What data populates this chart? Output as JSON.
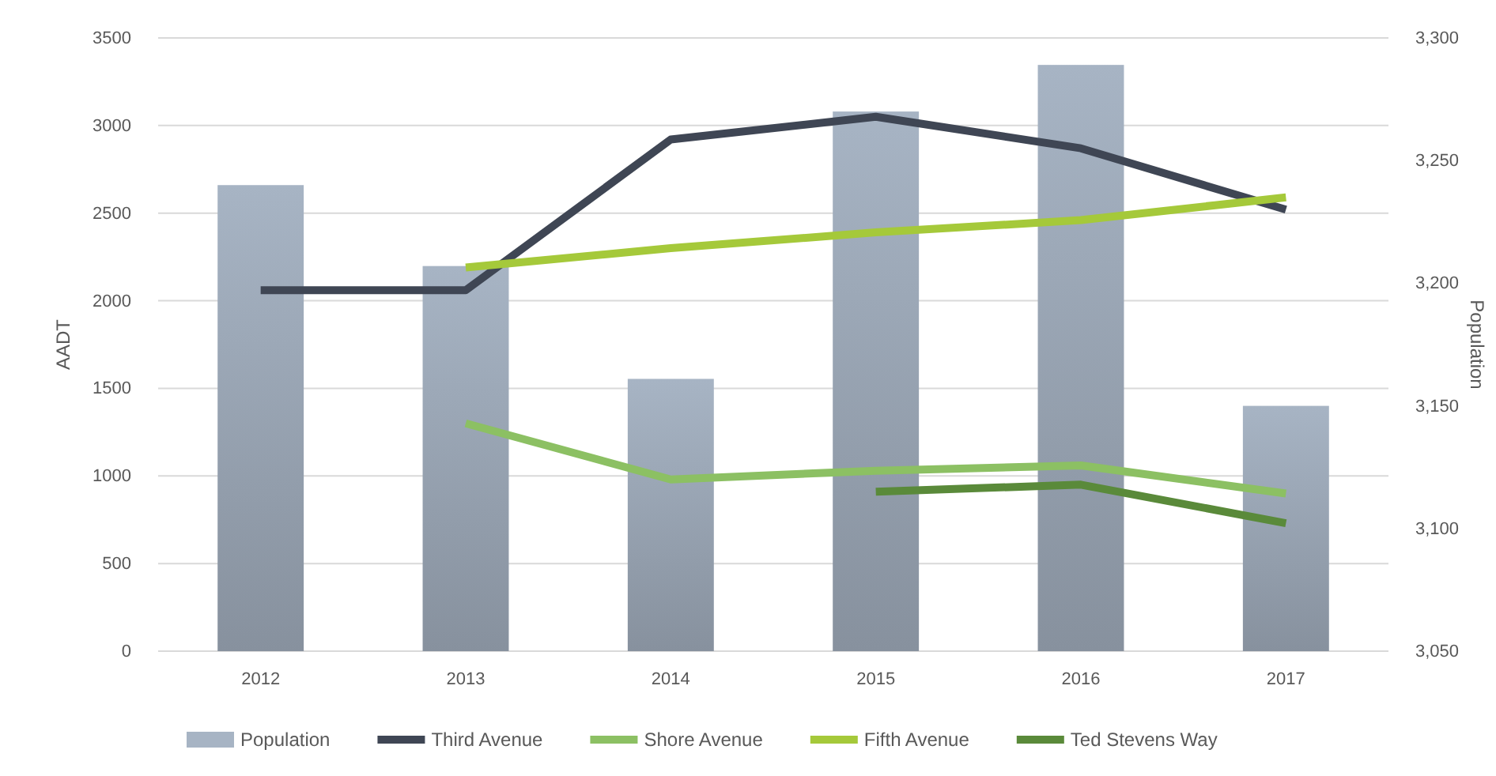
{
  "chart_data": {
    "type": "line",
    "ylabel": "AADT",
    "y2label": "Population",
    "categories": [
      "2012",
      "2013",
      "2014",
      "2015",
      "2016",
      "2017"
    ],
    "ylim": [
      0,
      3500
    ],
    "yticks": [
      0,
      500,
      1000,
      1500,
      2000,
      2500,
      3000,
      3500
    ],
    "y2lim": [
      3050,
      3300
    ],
    "y2ticks": [
      {
        "value": 3050,
        "label": "3,050"
      },
      {
        "value": 3100,
        "label": "3,100"
      },
      {
        "value": 3150,
        "label": "3,150"
      },
      {
        "value": 3200,
        "label": "3,200"
      },
      {
        "value": 3250,
        "label": "3,250"
      },
      {
        "value": 3300,
        "label": "3,300"
      }
    ],
    "grid": "y",
    "legend": "bottom",
    "line_style": "solid",
    "marker": "none",
    "series": [
      {
        "name": "Population",
        "type": "bar",
        "axis": "y2",
        "color": "#a7b4c4",
        "values": [
          3240,
          3207,
          3161,
          3270,
          3289,
          3150
        ]
      },
      {
        "name": "Third Avenue",
        "color": "#3f4654",
        "values": [
          2060,
          2060,
          2920,
          3050,
          2870,
          2520
        ]
      },
      {
        "name": "Shore Avenue",
        "color": "#8cc063",
        "values": [
          null,
          1300,
          980,
          1030,
          1060,
          900
        ]
      },
      {
        "name": "Fifth Avenue",
        "color": "#a5c93a",
        "values": [
          null,
          2190,
          2300,
          2390,
          2460,
          2590
        ]
      },
      {
        "name": "Ted Stevens Way",
        "color": "#5a8a3a",
        "values": [
          null,
          null,
          null,
          910,
          950,
          730
        ]
      }
    ]
  }
}
